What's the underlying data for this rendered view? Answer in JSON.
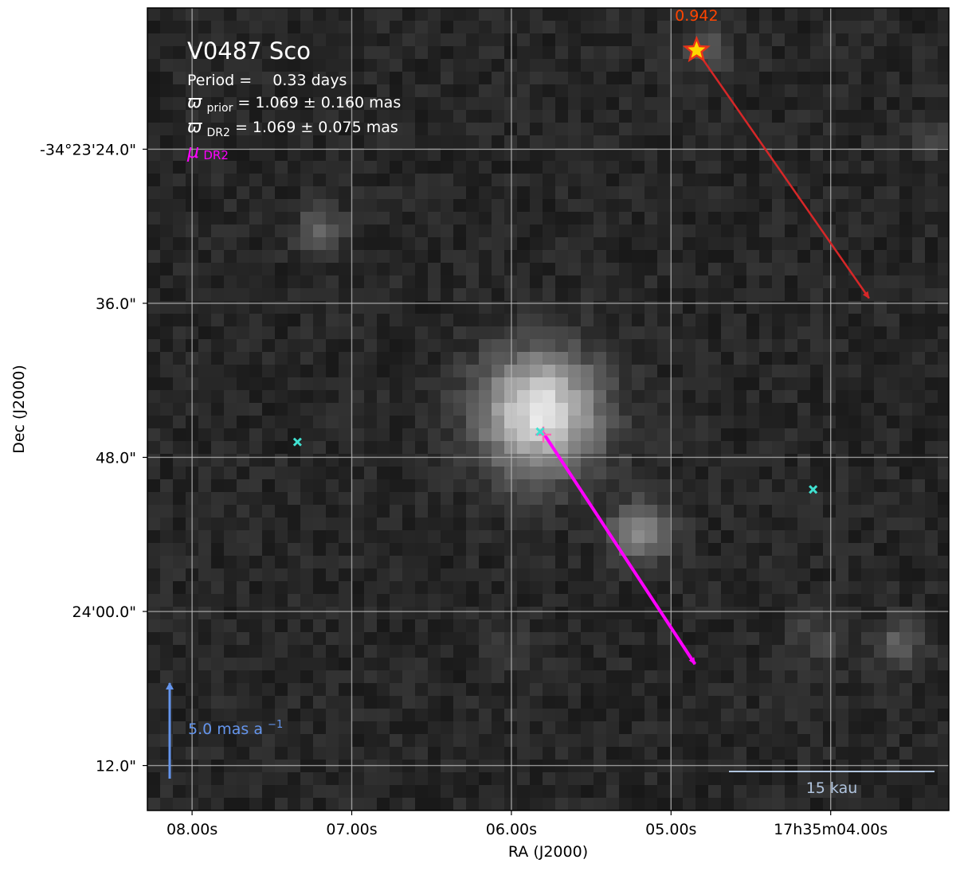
{
  "chart_data": {
    "type": "image",
    "title": "V0487 Sco",
    "stats": {
      "period_label": "Period =",
      "period_value": "0.33 days",
      "prior_symbol": "ϖ",
      "prior_sub": "prior",
      "prior_text": "= 1.069 ± 0.160 mas",
      "dr2_symbol": "ϖ",
      "dr2_sub": "DR2",
      "dr2_text": "= 1.069 ± 0.075 mas",
      "mu_symbol": "μ",
      "mu_sub": "DR2"
    },
    "xlabel": "RA (J2000)",
    "ylabel": "Dec (J2000)",
    "x_ticks": [
      "08.00s",
      "07.00s",
      "06.00s",
      "05.00s",
      "17h35m04.00s"
    ],
    "x_tick_seconds": [
      8.0,
      7.0,
      6.0,
      5.0,
      4.0
    ],
    "x_range_seconds": [
      8.28,
      3.26
    ],
    "y_ticks": [
      "-34°23'24.0\"",
      "36.0\"",
      "48.0\"",
      "24'00.0\"",
      "12.0\""
    ],
    "y_tick_arcsec": [
      24.0,
      36.0,
      48.0,
      60.0,
      72.0
    ],
    "y_range_arcsec": [
      13.0,
      75.5
    ],
    "grid": true,
    "colors": {
      "grid": "#bdbdbd",
      "candidate": "#40e0d0",
      "target_marker": "#ff69b4",
      "pm_dr2": "#ff00ff",
      "pm_other": "#d62728",
      "star_fill": "#ffd700",
      "star_edge": "#e8321a",
      "star_label": "#ff4500",
      "scale_pm": "#6495ed",
      "scale_bar": "#b0c4de"
    },
    "sources": [
      {
        "name": "candidate-west",
        "ra_s": 7.34,
        "dec_arcsec": 46.8,
        "type": "cross"
      },
      {
        "name": "candidate-target",
        "ra_s": 5.82,
        "dec_arcsec": 46.0,
        "type": "cross"
      },
      {
        "name": "candidate-east",
        "ra_s": 4.11,
        "dec_arcsec": 50.5,
        "type": "cross"
      }
    ],
    "target": {
      "ra_s": 5.8,
      "dec_arcsec": 46.1
    },
    "bright_sources": [
      {
        "ra_s": 5.82,
        "dec_arcsec": 44.5,
        "flux": 1.0,
        "width_arcsec": 3.2
      },
      {
        "ra_s": 5.19,
        "dec_arcsec": 53.8,
        "flux": 0.55,
        "width_arcsec": 1.6
      },
      {
        "ra_s": 7.19,
        "dec_arcsec": 30.2,
        "flux": 0.3,
        "width_arcsec": 1.3
      },
      {
        "ra_s": 3.58,
        "dec_arcsec": 62.6,
        "flux": 0.28,
        "width_arcsec": 1.3
      },
      {
        "ra_s": 4.08,
        "dec_arcsec": 62.2,
        "flux": 0.15,
        "width_arcsec": 1.6
      },
      {
        "ra_s": 5.98,
        "dec_arcsec": 63.1,
        "flux": 0.13,
        "width_arcsec": 1.2
      },
      {
        "ra_s": 4.78,
        "dec_arcsec": 16.3,
        "flux": 0.24,
        "width_arcsec": 1.3
      },
      {
        "ra_s": 3.35,
        "dec_arcsec": 22.9,
        "flux": 0.14,
        "width_arcsec": 1.0
      }
    ],
    "star": {
      "ra_s": 4.84,
      "dec_arcsec": 16.3,
      "label": "0.942"
    },
    "pm_arrows": [
      {
        "name": "pm-arrow-dr2",
        "from_ra_s": 5.8,
        "from_dec_arcsec": 46.1,
        "to_ra_s": 4.85,
        "to_dec_arcsec": 64.1,
        "color": "pm_dr2"
      },
      {
        "name": "pm-arrow-other",
        "from_ra_s": 4.84,
        "from_dec_arcsec": 16.3,
        "to_ra_s": 3.76,
        "to_dec_arcsec": 35.6,
        "color": "pm_other"
      }
    ],
    "pm_scale": {
      "label": "5.0 mas a",
      "exponent": "−1",
      "value_mas_per_yr": 5.0
    },
    "length_scale": {
      "label": "15 kau",
      "value_kau": 15
    }
  }
}
